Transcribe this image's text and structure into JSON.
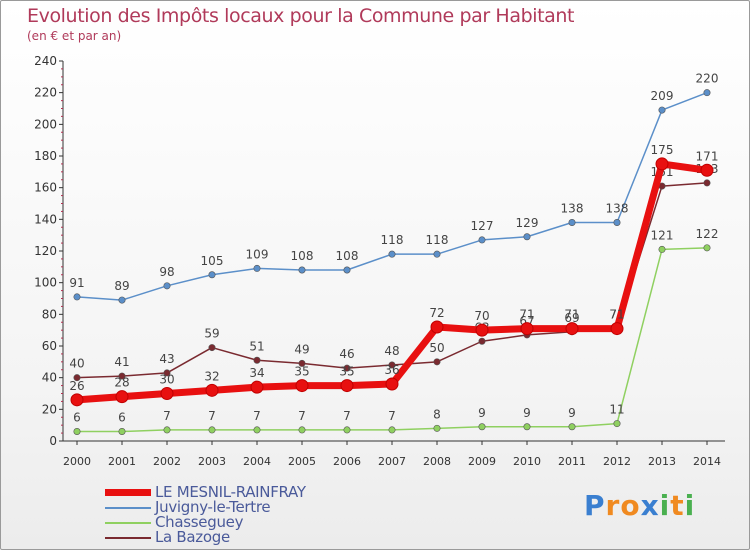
{
  "chart_data": {
    "type": "line",
    "title": "Evolution des Impôts locaux pour la Commune par Habitant",
    "subtitle": "(en € et par an)",
    "xlabel": "",
    "ylabel": "",
    "ylim": [
      0,
      240
    ],
    "yticks": [
      0,
      20,
      40,
      60,
      80,
      100,
      120,
      140,
      160,
      180,
      200,
      220,
      240
    ],
    "categories": [
      "2000",
      "2001",
      "2002",
      "2003",
      "2004",
      "2005",
      "2006",
      "2007",
      "2008",
      "2009",
      "2010",
      "2011",
      "2012",
      "2013",
      "2014"
    ],
    "series": [
      {
        "name": "Juvigny-le-Tertre",
        "color": "#5b8fc9",
        "values": [
          91,
          89,
          98,
          105,
          109,
          108,
          108,
          118,
          118,
          127,
          129,
          138,
          138,
          209,
          220
        ]
      },
      {
        "name": "Chasseguey",
        "color": "#8fd060",
        "values": [
          6,
          6,
          7,
          7,
          7,
          7,
          7,
          7,
          8,
          9,
          9,
          9,
          11,
          121,
          122
        ]
      },
      {
        "name": "La Bazoge",
        "color": "#7a2a30",
        "values": [
          40,
          41,
          43,
          59,
          51,
          49,
          46,
          48,
          50,
          63,
          67,
          69,
          71,
          161,
          163
        ]
      },
      {
        "name": "LE MESNIL-RAINFRAY",
        "color": "#e81010",
        "values": [
          26,
          28,
          30,
          32,
          34,
          35,
          35,
          36,
          72,
          70,
          71,
          71,
          71,
          175,
          171
        ]
      }
    ],
    "legend": [
      "LE MESNIL-RAINFRAY",
      "Juvigny-le-Tertre",
      "Chasseguey",
      "La Bazoge"
    ],
    "grid": false
  },
  "brand": {
    "letters": [
      "P",
      "r",
      "o",
      "x",
      "i",
      "t",
      "i"
    ],
    "colors": [
      "#3a7fd0",
      "#f08a20",
      "#f08a20",
      "#3a7fd0",
      "#4ab050",
      "#f08a20",
      "#4ab050"
    ]
  }
}
